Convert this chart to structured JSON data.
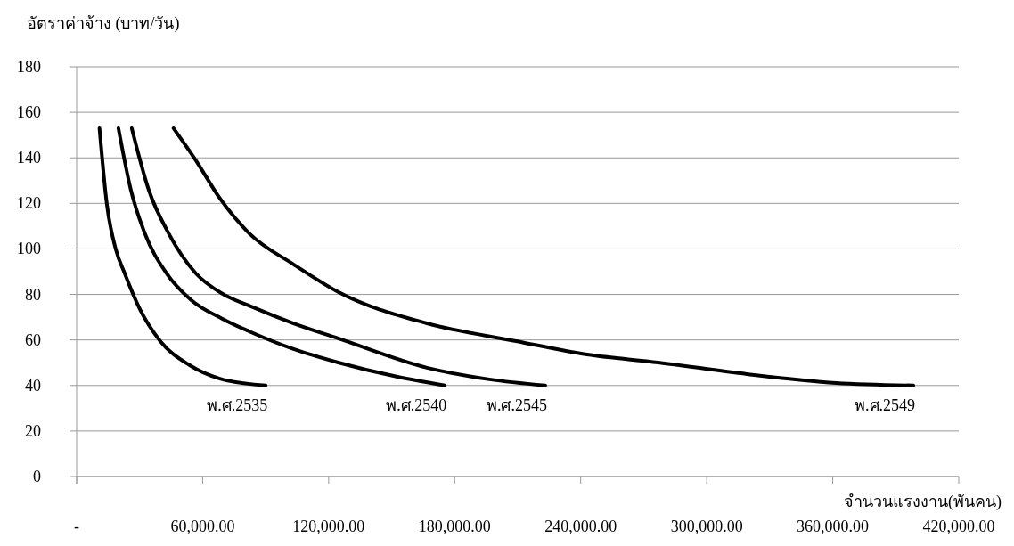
{
  "chart_data": {
    "type": "line",
    "ylabel": "อัตราค่าจ้าง (บาท/วัน)",
    "xlabel": "จำนวนแรงงาน(พันคน)",
    "xlim": [
      0,
      420000
    ],
    "xticks": [
      {
        "value": 0,
        "label": "-"
      },
      {
        "value": 60000,
        "label": "60,000.00"
      },
      {
        "value": 120000,
        "label": "120,000.00"
      },
      {
        "value": 180000,
        "label": "180,000.00"
      },
      {
        "value": 240000,
        "label": "240,000.00"
      },
      {
        "value": 300000,
        "label": "300,000.00"
      },
      {
        "value": 360000,
        "label": "360,000.00"
      },
      {
        "value": 420000,
        "label": "420,000.00"
      }
    ],
    "ylim": [
      0,
      180
    ],
    "yticks": [
      0,
      20,
      40,
      60,
      80,
      100,
      120,
      140,
      160,
      180
    ],
    "grid": "y",
    "legend": false,
    "marker": "none",
    "line_style": "solid",
    "series": [
      {
        "name": "พ.ศ.2535",
        "color": "#000000",
        "x": [
          10880,
          14400,
          18630,
          22860,
          30060,
          39800,
          53800,
          68200,
          90000
        ],
        "values": [
          153,
          119.5,
          99.9,
          89.3,
          73.6,
          59.5,
          48.9,
          43,
          40
        ]
      },
      {
        "name": "พ.ศ.2540",
        "color": "#000000",
        "x": [
          19900,
          25800,
          32600,
          42800,
          54600,
          69400,
          82100,
          103300,
          124500,
          152800,
          175300
        ],
        "values": [
          153,
          126,
          106.5,
          89.3,
          77.5,
          69.3,
          63.8,
          56,
          50.1,
          43.8,
          40
        ]
      },
      {
        "name": "พ.ศ.2545",
        "color": "#000000",
        "x": [
          26250,
          34300,
          44000,
          56700,
          69400,
          82100,
          103300,
          124500,
          166800,
          196500,
          223100
        ],
        "values": [
          153,
          126,
          106.5,
          89.3,
          80.3,
          75.1,
          67.3,
          60.7,
          47.8,
          42.7,
          40
        ]
      },
      {
        "name": "พ.ศ.2549",
        "color": "#000000",
        "x": [
          46150,
          56700,
          68200,
          82100,
          103300,
          124500,
          166800,
          209200,
          243000,
          276900,
          319200,
          361600,
          398400
        ],
        "values": [
          153,
          139,
          122.2,
          106.9,
          93.2,
          81.1,
          67.3,
          59.5,
          53.6,
          50.1,
          45,
          41.1,
          40
        ]
      }
    ]
  }
}
